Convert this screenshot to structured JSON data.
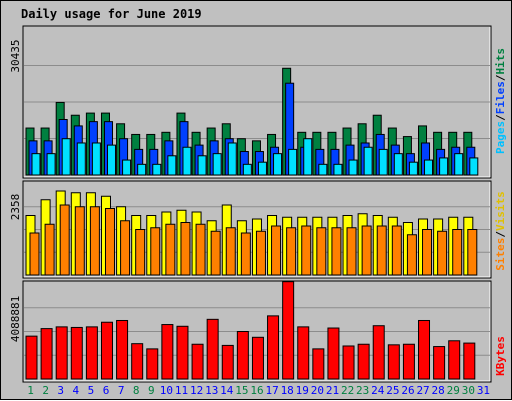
{
  "chart_data": {
    "type": "bar",
    "title": "Daily usage for June 2019",
    "colors": {
      "background": "#c0c0c0",
      "title": "#0000ff",
      "hits": "#008040",
      "files": "#0040ff",
      "pages": "#00e0ff",
      "visits": "#ffff00",
      "sites": "#ff8000",
      "kbytes": "#ff0000",
      "weekend_label": "#008040",
      "weekday_label": "#0000ff"
    },
    "legend_right_top": [
      {
        "label": "Pages",
        "color": "#00c0ff"
      },
      {
        "label": "Files",
        "color": "#0040ff"
      },
      {
        "label": "Hits",
        "color": "#008040"
      }
    ],
    "legend_right_mid": [
      {
        "label": "Sites",
        "color": "#ff8000"
      },
      {
        "label": "Visits",
        "color": "#e0c000"
      }
    ],
    "legend_right_bot": [
      {
        "label": "KBytes",
        "color": "#ff0000"
      }
    ],
    "slash": "/",
    "categories": [
      "1",
      "2",
      "3",
      "4",
      "5",
      "6",
      "7",
      "8",
      "9",
      "10",
      "11",
      "12",
      "13",
      "14",
      "15",
      "16",
      "17",
      "18",
      "19",
      "20",
      "21",
      "22",
      "23",
      "24",
      "25",
      "26",
      "27",
      "28",
      "29",
      "30",
      "31"
    ],
    "weekend_days": [
      "1",
      "2",
      "8",
      "9",
      "15",
      "16",
      "22",
      "23",
      "29",
      "30"
    ],
    "panels": [
      {
        "id": "top",
        "y_tick_label": "30435",
        "ylim": [
          0,
          34200
        ],
        "series": [
          {
            "name": "Hits",
            "values": [
              11000,
              11000,
              17000,
              14000,
              14500,
              14500,
              12000,
              9500,
              9500,
              10000,
              14500,
              10000,
              11000,
              12000,
              8500,
              8000,
              9500,
              25000,
              10000,
              10000,
              10000,
              11000,
              12000,
              14000,
              11000,
              9000,
              11500,
              10000,
              10000,
              10000,
              0
            ]
          },
          {
            "name": "Files",
            "values": [
              8000,
              8000,
              13000,
              11500,
              12500,
              12500,
              8500,
              6000,
              6000,
              8000,
              12500,
              7000,
              8000,
              8500,
              5500,
              5500,
              6500,
              21500,
              6500,
              6000,
              6000,
              7000,
              7500,
              9500,
              7000,
              5000,
              7500,
              6000,
              6500,
              6500,
              0
            ]
          },
          {
            "name": "Pages",
            "values": [
              5000,
              5000,
              8500,
              7500,
              7500,
              7000,
              3500,
              2500,
              2500,
              4500,
              6500,
              4500,
              5000,
              7500,
              2500,
              3000,
              5000,
              6000,
              8500,
              2500,
              2500,
              3500,
              6500,
              6000,
              5000,
              3000,
              3500,
              4000,
              5000,
              4000,
              0
            ]
          }
        ]
      },
      {
        "id": "mid",
        "y_tick_label": "2358",
        "ylim": [
          0,
          2600
        ],
        "series": [
          {
            "name": "Visits",
            "values": [
              1700,
              2150,
              2400,
              2350,
              2350,
              2250,
              1950,
              1700,
              1700,
              1800,
              1850,
              1800,
              1550,
              2000,
              1550,
              1600,
              1700,
              1650,
              1650,
              1650,
              1650,
              1700,
              1750,
              1700,
              1650,
              1500,
              1600,
              1600,
              1650,
              1650,
              0
            ]
          },
          {
            "name": "Sites",
            "values": [
              1200,
              1450,
              2000,
              1950,
              1950,
              1900,
              1550,
              1300,
              1350,
              1450,
              1500,
              1450,
              1250,
              1350,
              1200,
              1250,
              1400,
              1350,
              1400,
              1350,
              1350,
              1350,
              1400,
              1400,
              1400,
              1150,
              1300,
              1250,
              1300,
              1300,
              0
            ]
          }
        ]
      },
      {
        "id": "bot",
        "y_tick_label": "4088881",
        "ylim": [
          0,
          8200000
        ],
        "series": [
          {
            "name": "KBytes",
            "values": [
              3700000,
              4350000,
              4500000,
              4450000,
              4500000,
              4900000,
              5050000,
              3050000,
              2600000,
              4700000,
              4550000,
              3000000,
              5150000,
              2900000,
              4100000,
              3600000,
              5450000,
              8400000,
              4500000,
              2600000,
              4400000,
              2850000,
              3000000,
              4600000,
              2950000,
              3000000,
              5050000,
              2800000,
              3300000,
              3100000,
              0
            ]
          }
        ]
      }
    ]
  }
}
